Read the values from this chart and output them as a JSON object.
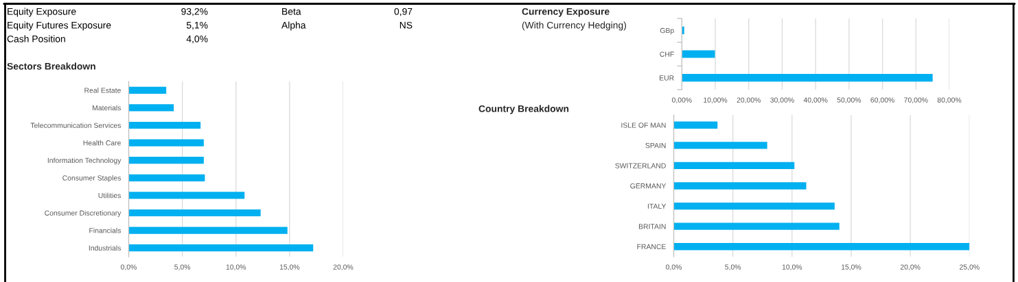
{
  "chart_data": [
    {
      "type": "other",
      "annotations": [
        "Equity Exposure",
        "93,2%",
        "Beta",
        "0,97",
        "Equity Futures Exposure",
        "5,1%",
        "Alpha",
        "NS",
        "Cash Position",
        "4,0%"
      ]
    },
    {
      "type": "bar",
      "orientation": "horizontal",
      "title": "Currency Exposure",
      "subtitle": "(With Currency Hedging)",
      "categories": [
        "GBp",
        "CHF",
        "EUR"
      ],
      "values": [
        0.7,
        9.9,
        75.0
      ],
      "color": "#00b0f0",
      "xlim": [
        0,
        80
      ],
      "xticks": [
        {
          "value": 0,
          "label": "0,00%"
        },
        {
          "value": 10,
          "label": "10,00%"
        },
        {
          "value": 20,
          "label": "20,00%"
        },
        {
          "value": 30,
          "label": "30,00%"
        },
        {
          "value": 40,
          "label": "40,00%"
        },
        {
          "value": 50,
          "label": "50,00%"
        },
        {
          "value": 60,
          "label": "60,00%"
        },
        {
          "value": 70,
          "label": "70,00%"
        },
        {
          "value": 80,
          "label": "80,00%"
        }
      ],
      "grid": "x"
    },
    {
      "type": "bar",
      "orientation": "horizontal",
      "title": "Sectors Breakdown",
      "categories": [
        "Real Estate",
        "Materials",
        "Telecommunication Services",
        "Health Care",
        "Information Technology",
        "Consumer Staples",
        "Utilities",
        "Consumer Discretionary",
        "Financials",
        "Industrials"
      ],
      "values": [
        3.5,
        4.2,
        6.7,
        7.0,
        7.0,
        7.1,
        10.8,
        12.3,
        14.8,
        17.2
      ],
      "color": "#00b0f0",
      "xlim": [
        0,
        20
      ],
      "xticks": [
        {
          "value": 0,
          "label": "0,0%"
        },
        {
          "value": 5,
          "label": "5,0%"
        },
        {
          "value": 10,
          "label": "10,0%"
        },
        {
          "value": 15,
          "label": "15,0%"
        },
        {
          "value": 20,
          "label": "20,0%"
        }
      ],
      "grid": "x"
    },
    {
      "type": "bar",
      "orientation": "horizontal",
      "title": "Country Breakdown",
      "categories": [
        "ISLE OF MAN",
        "SPAIN",
        "SWITZERLAND",
        "GERMANY",
        "ITALY",
        "BRITAIN",
        "FRANCE"
      ],
      "values": [
        3.7,
        7.9,
        10.2,
        11.2,
        13.6,
        14.0,
        25.0
      ],
      "color": "#00b0f0",
      "xlim": [
        0,
        25
      ],
      "xticks": [
        {
          "value": 0,
          "label": "0,0%"
        },
        {
          "value": 5,
          "label": "5,0%"
        },
        {
          "value": 10,
          "label": "10,0%"
        },
        {
          "value": 15,
          "label": "15,0%"
        },
        {
          "value": 20,
          "label": "20,0%"
        },
        {
          "value": 25,
          "label": "25,0%"
        }
      ],
      "grid": "x"
    }
  ]
}
